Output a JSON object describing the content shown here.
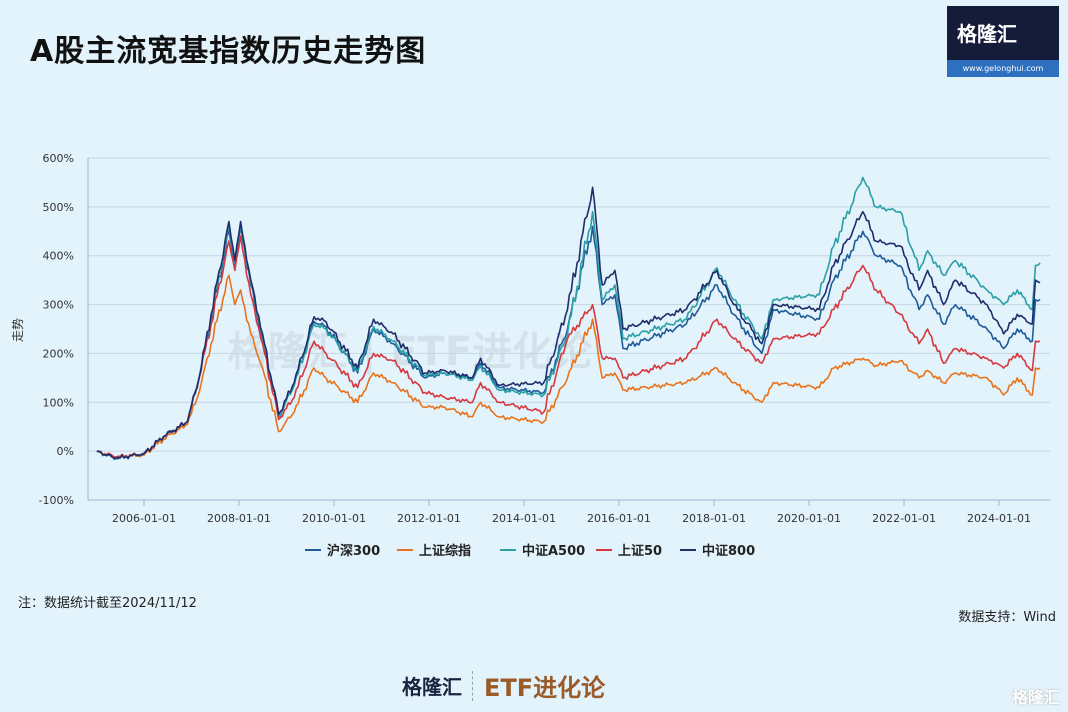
{
  "title": "A股主流宽基指数历史走势图",
  "logo": {
    "name": "格隆汇",
    "url": "www.gelonghui.com"
  },
  "note": "注：数据统计截至2024/11/12",
  "source": "数据支持：Wind",
  "footer": {
    "brand": "格隆汇",
    "column": "ETF进化论",
    "watermark": "格隆汇"
  },
  "chart_watermark": "格隆汇 | ETF进化论",
  "chart_data": {
    "type": "line",
    "ylabel": "走势",
    "ylim": [
      -100,
      600
    ],
    "yticks": [
      "600%",
      "500%",
      "400%",
      "300%",
      "200%",
      "100%",
      "0%",
      "-100%"
    ],
    "xticks": [
      "2006-01-01",
      "2008-01-01",
      "2010-01-01",
      "2012-01-01",
      "2014-01-01",
      "2016-01-01",
      "2018-01-01",
      "2020-01-01",
      "2022-01-01",
      "2024-01-01"
    ],
    "grid": true,
    "legend": "bottom",
    "x": [
      "2005-01-04",
      "2005-06-01",
      "2006-01-01",
      "2006-06-01",
      "2006-12-01",
      "2007-03-01",
      "2007-06-01",
      "2007-10-16",
      "2007-12-01",
      "2008-01-14",
      "2008-04-01",
      "2008-07-01",
      "2008-11-01",
      "2009-03-01",
      "2009-08-01",
      "2009-11-01",
      "2010-07-01",
      "2010-11-01",
      "2011-04-01",
      "2011-12-01",
      "2012-05-01",
      "2012-12-01",
      "2013-02-01",
      "2013-06-25",
      "2014-06-01",
      "2014-12-01",
      "2015-06-12",
      "2015-08-25",
      "2015-12-01",
      "2016-02-01",
      "2017-06-01",
      "2018-01-24",
      "2018-06-01",
      "2019-01-03",
      "2019-04-01",
      "2020-03-20",
      "2020-07-10",
      "2021-02-18",
      "2021-06-01",
      "2021-12-01",
      "2022-04-26",
      "2022-07-01",
      "2022-10-31",
      "2023-01-31",
      "2023-10-01",
      "2024-02-05",
      "2024-05-20",
      "2024-09-13",
      "2024-10-08",
      "2024-11-12"
    ],
    "series": [
      {
        "name": "沪深300",
        "color": "#1f5c99",
        "values": [
          0,
          -15,
          -5,
          30,
          60,
          150,
          270,
          450,
          380,
          460,
          340,
          230,
          70,
          135,
          265,
          255,
          160,
          250,
          220,
          150,
          160,
          150,
          180,
          130,
          120,
          250,
          460,
          300,
          320,
          210,
          260,
          340,
          280,
          200,
          290,
          270,
          350,
          450,
          400,
          380,
          290,
          320,
          260,
          300,
          250,
          210,
          250,
          225,
          310,
          310
        ]
      },
      {
        "name": "上证综指",
        "color": "#e8731a",
        "values": [
          0,
          -12,
          -8,
          25,
          55,
          120,
          220,
          360,
          300,
          330,
          240,
          170,
          40,
          80,
          170,
          150,
          100,
          160,
          140,
          90,
          90,
          70,
          100,
          70,
          60,
          150,
          270,
          150,
          160,
          125,
          140,
          170,
          140,
          100,
          140,
          130,
          170,
          190,
          175,
          185,
          150,
          165,
          140,
          160,
          150,
          115,
          150,
          115,
          170,
          170
        ]
      },
      {
        "name": "中证A500",
        "color": "#2aa0a5",
        "values": [
          0,
          -15,
          -5,
          30,
          60,
          150,
          275,
          460,
          385,
          465,
          345,
          235,
          70,
          135,
          260,
          250,
          165,
          255,
          225,
          155,
          160,
          145,
          175,
          125,
          115,
          240,
          490,
          310,
          340,
          230,
          270,
          375,
          310,
          230,
          310,
          320,
          420,
          560,
          500,
          490,
          370,
          410,
          360,
          390,
          330,
          300,
          330,
          290,
          380,
          385
        ]
      },
      {
        "name": "上证50",
        "color": "#d6383d",
        "values": [
          0,
          -12,
          -5,
          30,
          60,
          150,
          260,
          430,
          370,
          440,
          320,
          220,
          65,
          110,
          225,
          200,
          130,
          200,
          185,
          120,
          110,
          100,
          140,
          100,
          80,
          230,
          300,
          190,
          190,
          150,
          190,
          270,
          230,
          180,
          230,
          240,
          290,
          380,
          330,
          280,
          220,
          250,
          180,
          210,
          190,
          170,
          200,
          165,
          225,
          225
        ]
      },
      {
        "name": "中证800",
        "color": "#1f2d6b",
        "values": [
          0,
          -15,
          -5,
          30,
          60,
          150,
          280,
          470,
          390,
          470,
          350,
          240,
          75,
          140,
          275,
          265,
          170,
          270,
          240,
          160,
          165,
          150,
          190,
          135,
          140,
          290,
          540,
          340,
          370,
          250,
          290,
          370,
          300,
          220,
          300,
          290,
          380,
          490,
          430,
          420,
          330,
          370,
          300,
          350,
          300,
          240,
          280,
          260,
          350,
          345
        ]
      }
    ]
  }
}
